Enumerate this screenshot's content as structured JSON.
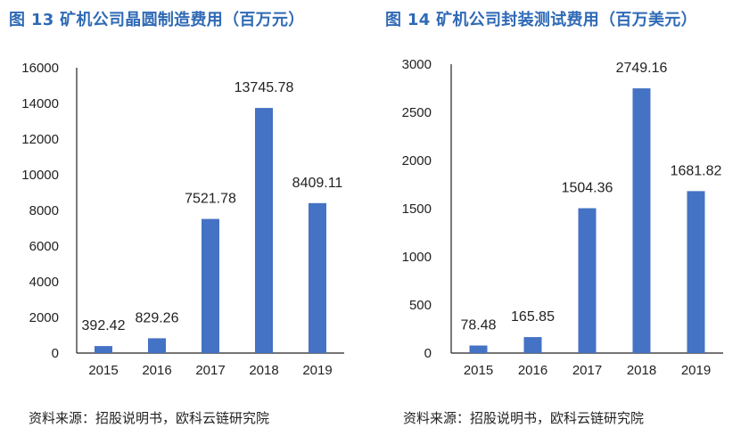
{
  "charts": [
    {
      "title": "图 13 矿机公司晶圆制造费用（百万元）",
      "source": "资料来源：招股说明书，欧科云链研究院"
    },
    {
      "title": "图 14 矿机公司封装测试费用（百万美元）",
      "source": "资料来源：招股说明书，欧科云链研究院"
    }
  ],
  "chart_data": [
    {
      "type": "bar",
      "title": "图 13 矿机公司晶圆制造费用（百万元）",
      "categories": [
        "2015",
        "2016",
        "2017",
        "2018",
        "2019"
      ],
      "values": [
        392.42,
        829.26,
        7521.78,
        13745.78,
        8409.11
      ],
      "value_labels": [
        "392.42",
        "829.26",
        "7521.78",
        "13745.78",
        "8409.11"
      ],
      "yticks": [
        "0",
        "2000",
        "4000",
        "6000",
        "8000",
        "10000",
        "12000",
        "14000",
        "16000"
      ],
      "ylim": [
        0,
        16000
      ],
      "xlabel": "",
      "ylabel": "",
      "grid": false,
      "bar_color": "#4472c4"
    },
    {
      "type": "bar",
      "title": "图 14 矿机公司封装测试费用（百万美元）",
      "categories": [
        "2015",
        "2016",
        "2017",
        "2018",
        "2019"
      ],
      "values": [
        78.48,
        165.85,
        1504.36,
        2749.16,
        1681.82
      ],
      "value_labels": [
        "78.48",
        "165.85",
        "1504.36",
        "2749.16",
        "1681.82"
      ],
      "yticks": [
        "0",
        "500",
        "1000",
        "1500",
        "2000",
        "2500",
        "3000"
      ],
      "ylim": [
        0,
        3000
      ],
      "xlabel": "",
      "ylabel": "",
      "grid": false,
      "bar_color": "#4472c4"
    }
  ]
}
